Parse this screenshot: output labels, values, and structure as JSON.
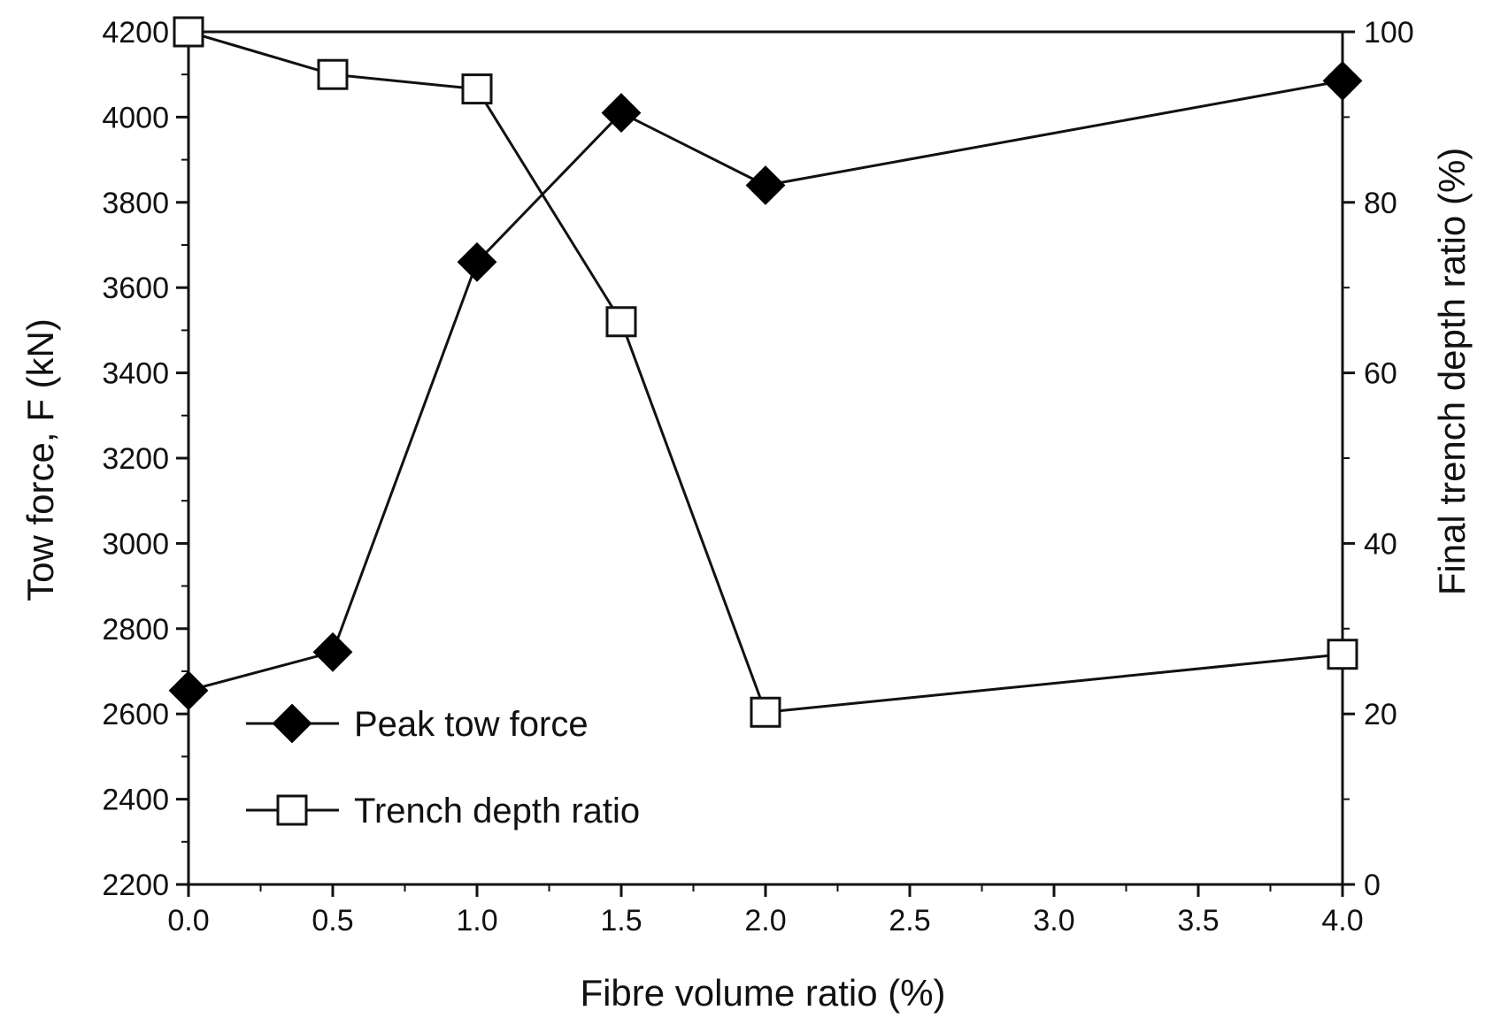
{
  "chart_data": {
    "type": "line",
    "title": "",
    "xlabel": "Fibre volume ratio (%)",
    "ylabel": "Tow force, F (kN)",
    "y2label": "Final trench depth ratio (%)",
    "x_tick_labels": [
      "0.0",
      "0.5",
      "1.0",
      "1.5",
      "2.0",
      "2.5",
      "3.0",
      "3.5",
      "4.0"
    ],
    "y_ticks": [
      2200,
      2400,
      2600,
      2800,
      3000,
      3200,
      3400,
      3600,
      3800,
      4000,
      4200
    ],
    "y2_ticks": [
      0,
      20,
      40,
      60,
      80,
      100
    ],
    "ylim": [
      2200,
      4200
    ],
    "y2lim": [
      0,
      100
    ],
    "grid": false,
    "legend_position": "bottom-left",
    "series": [
      {
        "name": "Peak tow force",
        "axis": "left",
        "marker": "filled-diamond",
        "x": [
          "0.0",
          "0.5",
          "1.0",
          "1.5",
          "2.0",
          "4.0"
        ],
        "values": [
          2655,
          2745,
          3660,
          4010,
          3840,
          4085
        ]
      },
      {
        "name": "Trench depth ratio",
        "axis": "right",
        "marker": "open-square",
        "x": [
          "0.0",
          "0.5",
          "1.0",
          "1.5",
          "2.0",
          "4.0"
        ],
        "values": [
          100,
          95,
          93.3,
          66,
          20.2,
          27
        ]
      }
    ]
  }
}
